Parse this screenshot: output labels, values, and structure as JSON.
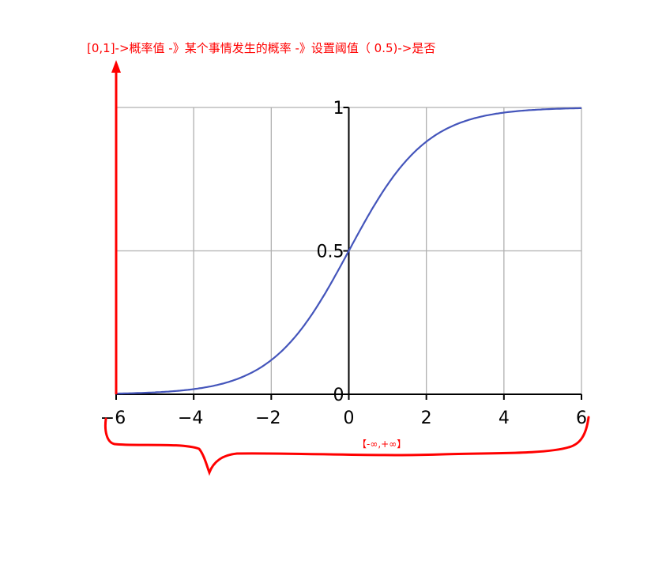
{
  "chart_data": {
    "type": "line",
    "function": "sigmoid 1/(1+e^-x)",
    "series": [
      {
        "x": [
          -6,
          -5,
          -4,
          -3,
          -2,
          -1,
          0,
          1,
          2,
          3,
          4,
          5,
          6
        ],
        "y": [
          0.0025,
          0.0067,
          0.018,
          0.047,
          0.119,
          0.269,
          0.5,
          0.731,
          0.881,
          0.953,
          0.982,
          0.993,
          0.9975
        ]
      }
    ],
    "xlim": [
      -6,
      6
    ],
    "ylim": [
      0,
      1
    ],
    "xticks": [
      "−6",
      "−4",
      "−2",
      "0",
      "2",
      "4",
      "6"
    ],
    "xtick_values": [
      -6,
      -4,
      -2,
      0,
      2,
      4,
      6
    ],
    "yticks": [
      "0",
      "0.5",
      "1"
    ],
    "ytick_values": [
      0,
      0.5,
      1
    ],
    "grid": true,
    "line_color": "#4455bb",
    "title": "",
    "xlabel": "",
    "ylabel": ""
  },
  "annotations": {
    "top": "[0,1]->概率值 -》某个事情发生的概率 -》设置阈值（ 0.5)->是否",
    "range": "【-∞,+∞】",
    "color": "#ff0000"
  }
}
